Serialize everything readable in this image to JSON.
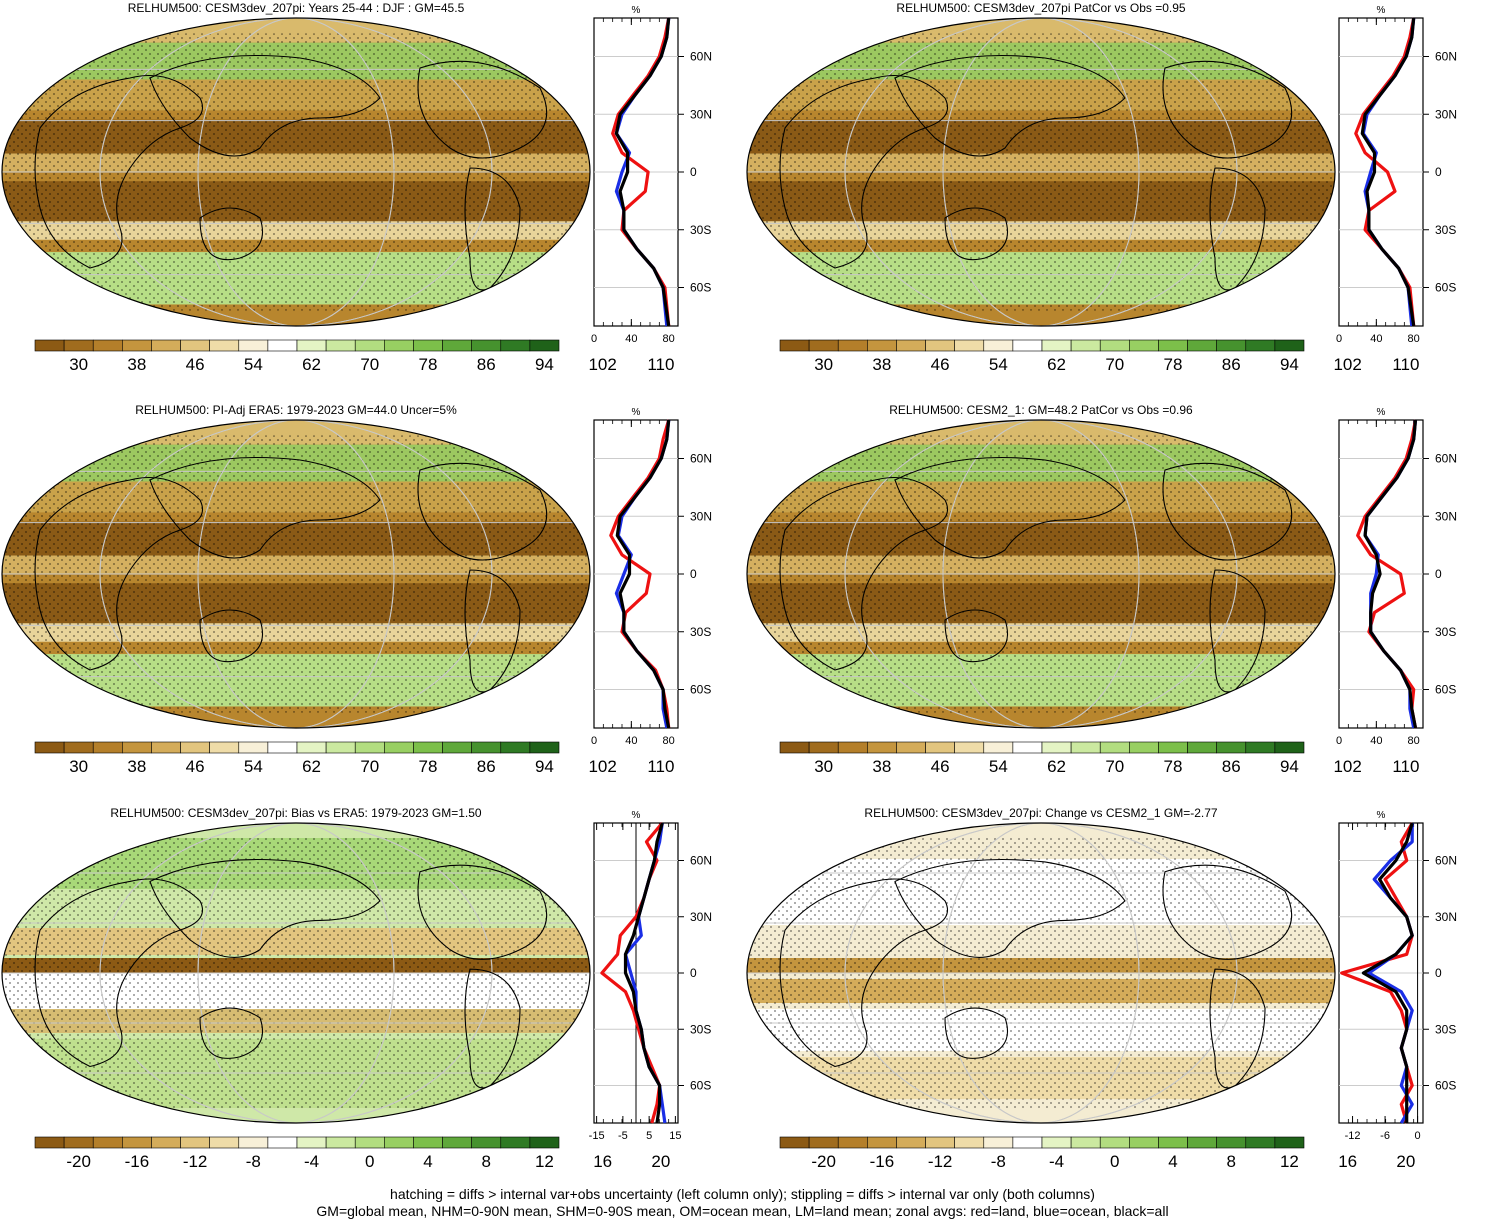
{
  "colorbars": {
    "abs": {
      "labels": [
        "30",
        "38",
        "46",
        "54",
        "62",
        "70",
        "78",
        "86",
        "94",
        "102",
        "110"
      ],
      "colors": [
        "#8c5a14",
        "#a06c1e",
        "#b47f2a",
        "#c4953e",
        "#d4ac5a",
        "#e2c57f",
        "#efdca8",
        "#f8f0d8",
        "#ffffff",
        "#e4f4c4",
        "#cbe9a0",
        "#b2dd80",
        "#98cf62",
        "#7cbf4a",
        "#5fa83a",
        "#46922e",
        "#2f7a24",
        "#1f6219"
      ]
    },
    "diff": {
      "labels": [
        "-20",
        "-16",
        "-12",
        "-8",
        "-4",
        "0",
        "4",
        "8",
        "12",
        "16",
        "20"
      ],
      "colors": [
        "#8c5a14",
        "#a06c1e",
        "#b47f2a",
        "#c4953e",
        "#d4ac5a",
        "#e2c57f",
        "#efdca8",
        "#f8f0d8",
        "#ffffff",
        "#e4f4c4",
        "#cbe9a0",
        "#b2dd80",
        "#98cf62",
        "#7cbf4a",
        "#5fa83a",
        "#46922e",
        "#2f7a24",
        "#1f6219"
      ]
    }
  },
  "footnote": {
    "line1": "hatching = diffs > internal var+obs uncertainty (left column only); stippling = diffs > internal var only (both columns)",
    "line2": "GM=global mean, NHM=0-90N mean, SHM=0-90S mean, OM=ocean mean, LM=land mean; zonal avgs: red=land, blue=ocean, black=all"
  },
  "chart_data": [
    {
      "type": "heatmap",
      "title": "RELHUM500: CESM3dev_207pi: Years 25-44 : DJF : GM=45.5",
      "map_kind": "abs",
      "colorbar": "abs",
      "zonal": {
        "unit": "%",
        "xticks": [
          "0",
          "40",
          "80"
        ],
        "xlim": [
          0,
          90
        ],
        "yticks": [
          "60N",
          "30N",
          "0",
          "30S",
          "60S"
        ],
        "ylim": [
          -80,
          80
        ],
        "lat": [
          80,
          70,
          60,
          50,
          40,
          30,
          20,
          10,
          0,
          -10,
          -20,
          -30,
          -40,
          -50,
          -60,
          -70,
          -80
        ],
        "series": [
          {
            "name": "red",
            "values": [
              80,
              76,
              70,
              58,
              42,
              26,
              20,
              30,
              58,
              55,
              32,
              30,
              46,
              64,
              76,
              78,
              80
            ]
          },
          {
            "name": "blue",
            "values": [
              80,
              78,
              72,
              60,
              44,
              30,
              24,
              38,
              30,
              24,
              32,
              32,
              46,
              64,
              74,
              76,
              78
            ]
          },
          {
            "name": "black",
            "values": [
              80,
              78,
              72,
              60,
              44,
              28,
              24,
              36,
              36,
              28,
              32,
              32,
              46,
              64,
              74,
              77,
              80
            ]
          }
        ]
      }
    },
    {
      "type": "heatmap",
      "title": "RELHUM500: CESM3dev_207pi PatCor vs Obs =0.95",
      "map_kind": "abs",
      "colorbar": "abs",
      "zonal": {
        "unit": "%",
        "xticks": [
          "0",
          "40",
          "80"
        ],
        "xlim": [
          0,
          90
        ],
        "yticks": [
          "60N",
          "30N",
          "0",
          "30S",
          "60S"
        ],
        "ylim": [
          -80,
          80
        ],
        "lat": [
          80,
          70,
          60,
          50,
          40,
          30,
          20,
          10,
          0,
          -10,
          -20,
          -30,
          -40,
          -50,
          -60,
          -70,
          -80
        ],
        "series": [
          {
            "name": "red",
            "values": [
              80,
              76,
              70,
              58,
              42,
              26,
              18,
              28,
              52,
              60,
              32,
              28,
              46,
              64,
              76,
              78,
              80
            ]
          },
          {
            "name": "blue",
            "values": [
              80,
              78,
              72,
              60,
              44,
              30,
              26,
              40,
              34,
              28,
              32,
              32,
              46,
              64,
              74,
              76,
              78
            ]
          },
          {
            "name": "black",
            "values": [
              80,
              78,
              72,
              60,
              44,
              28,
              25,
              38,
              38,
              30,
              32,
              32,
              46,
              64,
              74,
              77,
              80
            ]
          }
        ]
      }
    },
    {
      "type": "heatmap",
      "title": "RELHUM500: PI-Adj ERA5: 1979-2023 GM=44.0 Uncer=5%",
      "map_kind": "abs",
      "colorbar": "abs",
      "zonal": {
        "unit": "%",
        "xticks": [
          "0",
          "40",
          "80"
        ],
        "xlim": [
          0,
          90
        ],
        "yticks": [
          "60N",
          "30N",
          "0",
          "30S",
          "60S"
        ],
        "ylim": [
          -80,
          80
        ],
        "lat": [
          80,
          70,
          60,
          50,
          40,
          30,
          20,
          10,
          0,
          -10,
          -20,
          -30,
          -40,
          -50,
          -60,
          -70,
          -80
        ],
        "series": [
          {
            "name": "red",
            "values": [
              80,
              74,
              70,
              58,
              42,
              26,
              18,
              30,
              60,
              56,
              34,
              30,
              46,
              66,
              74,
              78,
              80
            ]
          },
          {
            "name": "blue",
            "values": [
              80,
              78,
              72,
              60,
              44,
              30,
              26,
              40,
              32,
              24,
              32,
              32,
              46,
              64,
              74,
              74,
              78
            ]
          },
          {
            "name": "black",
            "values": [
              80,
              78,
              72,
              60,
              44,
              28,
              25,
              38,
              38,
              28,
              32,
              32,
              46,
              64,
              74,
              76,
              80
            ]
          }
        ]
      }
    },
    {
      "type": "heatmap",
      "title": "RELHUM500: CESM2_1: GM=48.2 PatCor vs Obs =0.96",
      "map_kind": "abs",
      "colorbar": "abs",
      "zonal": {
        "unit": "%",
        "xticks": [
          "0",
          "40",
          "80"
        ],
        "xlim": [
          0,
          90
        ],
        "yticks": [
          "60N",
          "30N",
          "0",
          "30S",
          "60S"
        ],
        "ylim": [
          -80,
          80
        ],
        "lat": [
          80,
          70,
          60,
          50,
          40,
          30,
          20,
          10,
          0,
          -10,
          -20,
          -30,
          -40,
          -50,
          -60,
          -70,
          -80
        ],
        "series": [
          {
            "name": "red",
            "values": [
              82,
              78,
              72,
              60,
              44,
              28,
              20,
              34,
              66,
              70,
              38,
              32,
              48,
              66,
              80,
              78,
              82
            ]
          },
          {
            "name": "blue",
            "values": [
              82,
              80,
              74,
              62,
              46,
              30,
              28,
              42,
              40,
              34,
              34,
              34,
              48,
              66,
              76,
              76,
              80
            ]
          },
          {
            "name": "black",
            "values": [
              82,
              80,
              74,
              62,
              46,
              30,
              28,
              40,
              44,
              36,
              34,
              34,
              48,
              66,
              76,
              78,
              82
            ]
          }
        ]
      }
    },
    {
      "type": "heatmap",
      "title": "RELHUM500: CESM3dev_207pi: Bias vs ERA5: 1979-2023 GM=1.50",
      "map_kind": "bias",
      "colorbar": "diff",
      "zonal": {
        "unit": "%",
        "xticks": [
          "-15",
          "-5",
          "5",
          "15"
        ],
        "xlim": [
          -16,
          16
        ],
        "zero_line": 0,
        "yticks": [
          "60N",
          "30N",
          "0",
          "30S",
          "60S"
        ],
        "ylim": [
          -80,
          80
        ],
        "lat": [
          80,
          70,
          60,
          50,
          40,
          30,
          20,
          10,
          0,
          -10,
          -20,
          -30,
          -40,
          -50,
          -60,
          -70,
          -80
        ],
        "series": [
          {
            "name": "red",
            "values": [
              10,
              4,
              8,
              5,
              3,
              0,
              -6,
              -7,
              -13,
              -4,
              -1,
              1,
              3,
              6,
              9,
              8,
              6
            ]
          },
          {
            "name": "blue",
            "values": [
              10,
              9,
              7,
              5,
              3,
              1,
              2,
              -4,
              -2,
              0,
              0,
              2,
              3,
              5,
              9,
              10,
              11
            ]
          },
          {
            "name": "black",
            "values": [
              10,
              8,
              7,
              5,
              3,
              1,
              -1,
              -4,
              -4,
              -1,
              0,
              2,
              3,
              5,
              9,
              9,
              8
            ]
          }
        ]
      }
    },
    {
      "type": "heatmap",
      "title": "RELHUM500: CESM3dev_207pi: Change vs CESM2_1 GM=-2.77",
      "map_kind": "change",
      "colorbar": "diff",
      "zonal": {
        "unit": "%",
        "xticks": [
          "-12",
          "-6",
          "0"
        ],
        "xlim": [
          -14.5,
          1
        ],
        "zero_line": 0,
        "yticks": [
          "60N",
          "30N",
          "0",
          "30S",
          "60S"
        ],
        "ylim": [
          -80,
          80
        ],
        "lat": [
          80,
          70,
          60,
          50,
          40,
          30,
          20,
          10,
          0,
          -10,
          -20,
          -30,
          -40,
          -50,
          -60,
          -70,
          -80
        ],
        "series": [
          {
            "name": "red",
            "values": [
              -1,
              -3,
              -2,
              -6,
              -4,
              -2,
              -1,
              -2,
              -14,
              -5,
              -3,
              -2,
              -3,
              -2,
              -1,
              -3,
              -2
            ]
          },
          {
            "name": "blue",
            "values": [
              -1,
              -1,
              -5,
              -8,
              -5,
              -2,
              -1,
              -4,
              -9,
              -3,
              -1,
              -2,
              -3,
              -2,
              -3,
              -1,
              -3
            ]
          },
          {
            "name": "black",
            "values": [
              -1,
              -2,
              -4,
              -7,
              -5,
              -2,
              -1,
              -4,
              -10,
              -4,
              -2,
              -2,
              -3,
              -2,
              -2,
              -2,
              -2
            ]
          }
        ]
      }
    }
  ]
}
